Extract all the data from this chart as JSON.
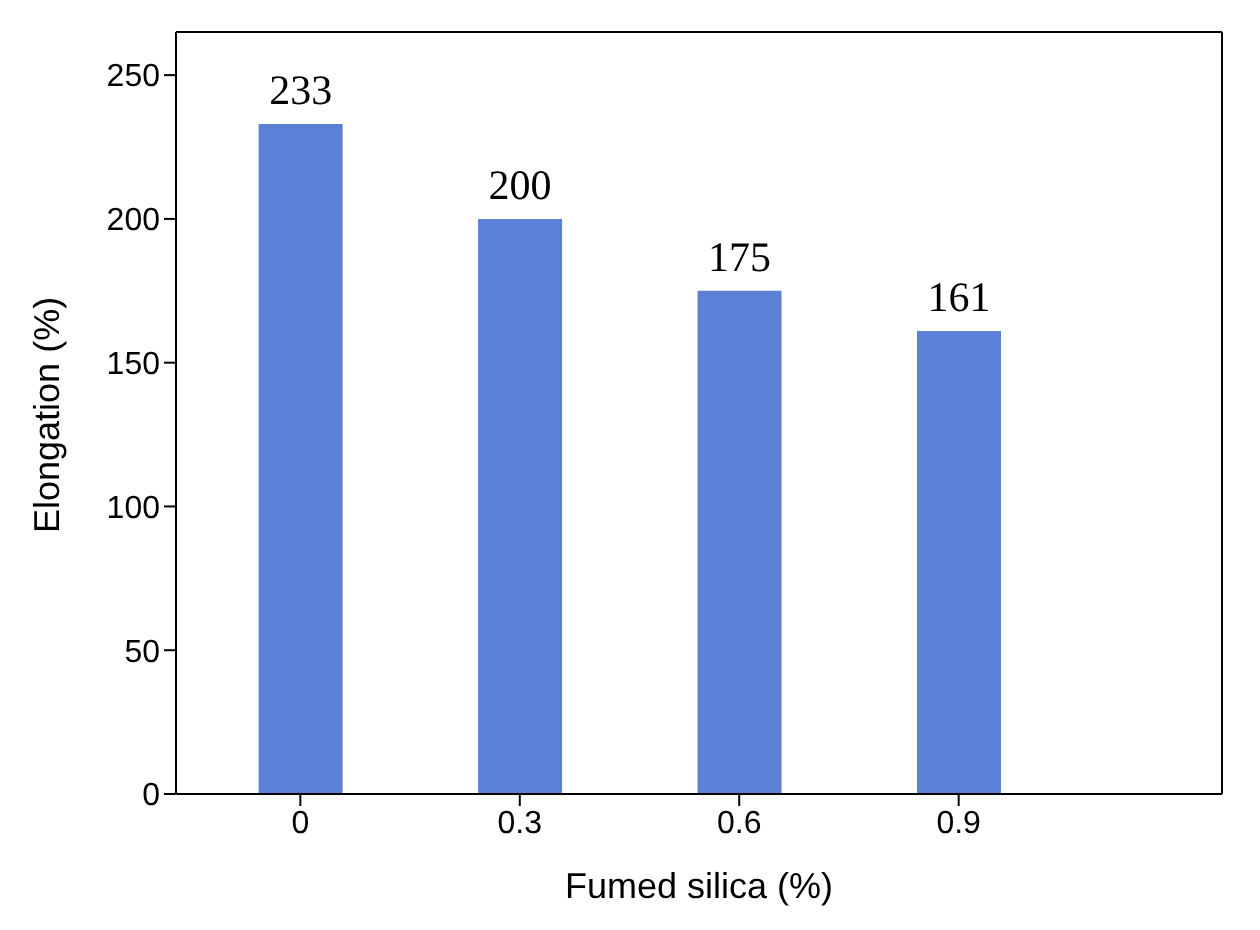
{
  "chart_data": {
    "type": "bar",
    "xlabel": "Fumed silica (%)",
    "ylabel": "Elongation (%)",
    "x": [
      0,
      0.3,
      0.6,
      0.9
    ],
    "values": [
      233,
      200,
      175,
      161
    ],
    "color": "#5b80d6",
    "data_labels": true,
    "xlim": [
      -0.17,
      1.26
    ],
    "xticks": [
      0,
      0.3,
      0.6,
      0.9
    ],
    "ylim": [
      0,
      265
    ],
    "yticks": [
      0,
      50,
      100,
      150,
      200,
      250
    ],
    "grid": false,
    "legend": false
  }
}
